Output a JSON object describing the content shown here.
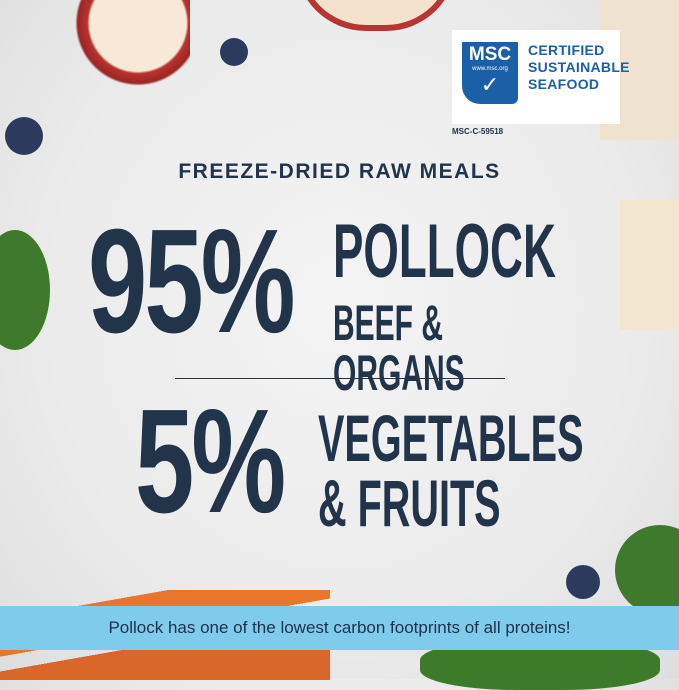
{
  "badge": {
    "logo_text": "MSC",
    "logo_url": "www.msc.org",
    "line1": "CERTIFIED",
    "line2": "SUSTAINABLE",
    "line3": "SEAFOOD",
    "code": "MSC-C-59518"
  },
  "headline": {
    "subtitle": "FREEZE-DRIED RAW MEALS",
    "first": {
      "percent": "95%",
      "line1": "POLLOCK",
      "line2": "BEEF & ORGANS"
    },
    "second": {
      "percent": "5%",
      "line1": "VEGETABLES",
      "line2": "& FRUITS"
    }
  },
  "banner": {
    "text": "Pollock has one of the lowest carbon footprints of all proteins!"
  },
  "colors": {
    "text": "#22344a",
    "msc_blue": "#1b5fa8",
    "banner": "#7ecbeb"
  }
}
